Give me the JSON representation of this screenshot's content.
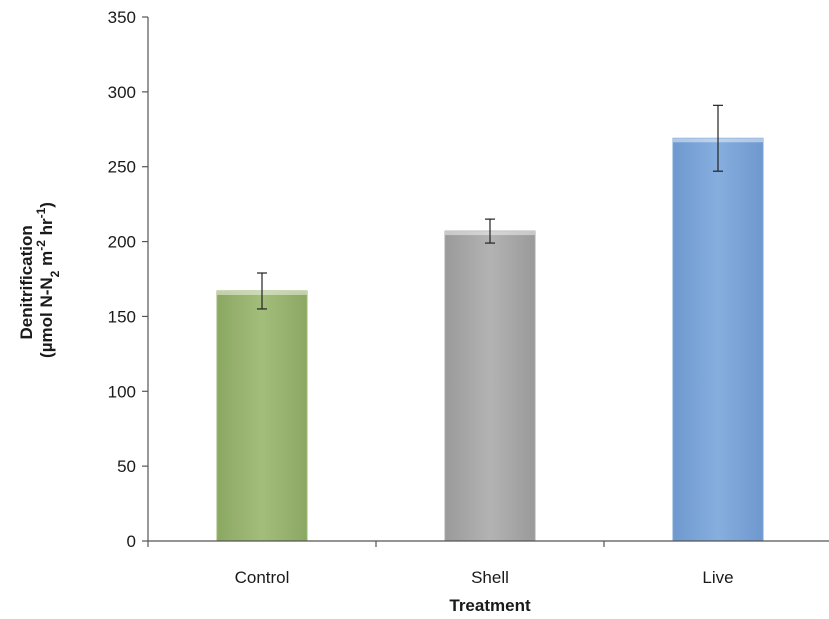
{
  "chart_data": {
    "type": "bar",
    "categories": [
      "Control",
      "Shell",
      "Live"
    ],
    "values": [
      167,
      207,
      269
    ],
    "errors": [
      12,
      8,
      22
    ],
    "xlabel": "Treatment",
    "ylabel_line1": "Denitrification",
    "ylabel_line2_parts": {
      "pre": "(µmol N-N",
      "sub": "2",
      "mid": " m",
      "sup1": "-2",
      "mid2": " hr",
      "sup2": "-1",
      "post": ")"
    },
    "ylim": [
      0,
      350
    ],
    "yticks": [
      0,
      50,
      100,
      150,
      200,
      250,
      300,
      350
    ],
    "grid": false,
    "colors": [
      "#9bb672",
      "#a8a8a8",
      "#7aa3d6"
    ]
  }
}
